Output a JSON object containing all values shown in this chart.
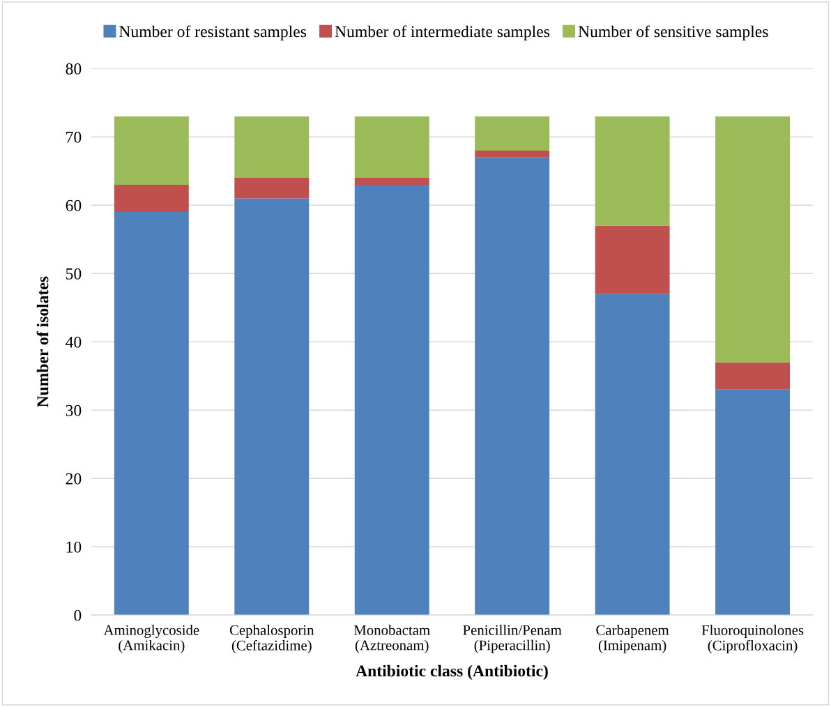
{
  "chart_data": {
    "type": "bar",
    "stacked": true,
    "xlabel": "Antibiotic class (Antibiotic)",
    "ylabel": "Number of isolates",
    "categories": [
      "Aminoglycoside\n(Amikacin)",
      "Cephalosporin\n(Ceftazidime)",
      "Monobactam\n(Aztreonam)",
      "Penicillin/Penam\n(Piperacillin)",
      "Carbapenem\n(Imipenam)",
      "Fluoroquinolones\n(Ciprofloxacin)"
    ],
    "series": [
      {
        "name": "Number of resistant samples",
        "color": "#4f81bd",
        "values": [
          59,
          61,
          63,
          67,
          47,
          33
        ]
      },
      {
        "name": "Number of intermediate samples",
        "color": "#c0504d",
        "values": [
          4,
          3,
          1,
          1,
          10,
          4
        ]
      },
      {
        "name": "Number of sensitive samples",
        "color": "#9bbb59",
        "values": [
          10,
          9,
          9,
          5,
          16,
          36
        ]
      }
    ],
    "ylim": [
      0,
      80
    ],
    "yticks": [
      0,
      10,
      20,
      30,
      40,
      50,
      60,
      70,
      80
    ],
    "grid": "y",
    "legend": "top"
  }
}
